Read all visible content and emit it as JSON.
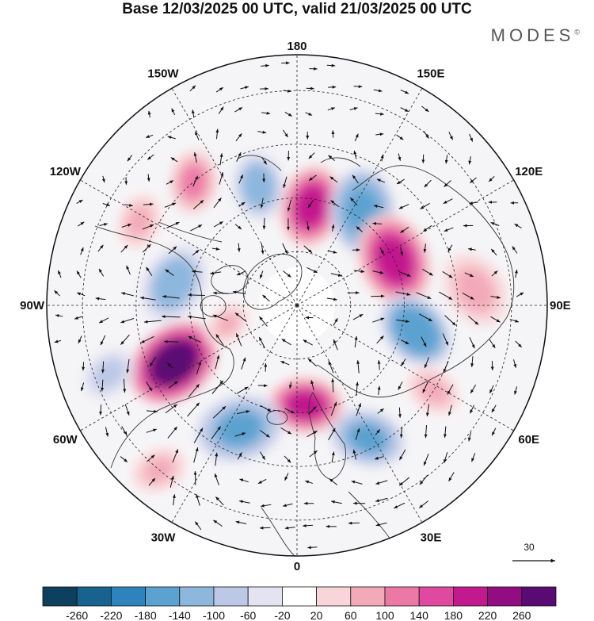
{
  "title": "Base 12/03/2025 00 UTC, valid 21/03/2025 00 UTC",
  "brand": "MODES",
  "brand_mark": "©",
  "longitudes": [
    {
      "label": "180",
      "lon": 180
    },
    {
      "label": "150E",
      "lon": 150
    },
    {
      "label": "120E",
      "lon": 120
    },
    {
      "label": "90E",
      "lon": 90
    },
    {
      "label": "60E",
      "lon": 60
    },
    {
      "label": "30E",
      "lon": 30
    },
    {
      "label": "0",
      "lon": 0
    },
    {
      "label": "30W",
      "lon": -30
    },
    {
      "label": "60W",
      "lon": -60
    },
    {
      "label": "90W",
      "lon": -90
    },
    {
      "label": "120W",
      "lon": -120
    },
    {
      "label": "150W",
      "lon": -150
    }
  ],
  "vector_scale": {
    "label": "30"
  },
  "colorbar": {
    "ticks": [
      "-260",
      "-220",
      "-180",
      "-140",
      "-100",
      "-60",
      "-20",
      "20",
      "60",
      "100",
      "140",
      "180",
      "220",
      "260"
    ],
    "colors": [
      "#0d3f5e",
      "#17628f",
      "#2f83bd",
      "#5ba2d0",
      "#8eb7de",
      "#bcc8e6",
      "#e3e3f1",
      "#ffffff",
      "#f8d5d8",
      "#f3aab8",
      "#ec78a6",
      "#df4aa0",
      "#c2198e",
      "#920c82",
      "#5a0a73"
    ]
  },
  "anomalies": [
    {
      "lat": 62,
      "lon": 172,
      "value": 200,
      "r": 0.13
    },
    {
      "lat": 55,
      "lon": -162,
      "value": -130,
      "r": 0.11
    },
    {
      "lat": 45,
      "lon": -140,
      "value": 110,
      "r": 0.1
    },
    {
      "lat": 58,
      "lon": 145,
      "value": -160,
      "r": 0.14
    },
    {
      "lat": 60,
      "lon": 115,
      "value": 180,
      "r": 0.15
    },
    {
      "lat": 56,
      "lon": 78,
      "value": -170,
      "r": 0.13
    },
    {
      "lat": 40,
      "lon": 95,
      "value": 80,
      "r": 0.12
    },
    {
      "lat": 45,
      "lon": 58,
      "value": 70,
      "r": 0.1
    },
    {
      "lat": 48,
      "lon": 28,
      "value": -140,
      "r": 0.12
    },
    {
      "lat": 62,
      "lon": 5,
      "value": 190,
      "r": 0.12
    },
    {
      "lat": 52,
      "lon": -25,
      "value": -150,
      "r": 0.14
    },
    {
      "lat": 52,
      "lon": -65,
      "value": 260,
      "r": 0.15
    },
    {
      "lat": 55,
      "lon": -100,
      "value": -130,
      "r": 0.13
    },
    {
      "lat": 40,
      "lon": -118,
      "value": 60,
      "r": 0.1
    },
    {
      "lat": 34,
      "lon": -70,
      "value": -80,
      "r": 0.09
    },
    {
      "lat": 30,
      "lon": -40,
      "value": 60,
      "r": 0.1
    },
    {
      "lat": 70,
      "lon": -75,
      "value": 60,
      "r": 0.08
    }
  ]
}
